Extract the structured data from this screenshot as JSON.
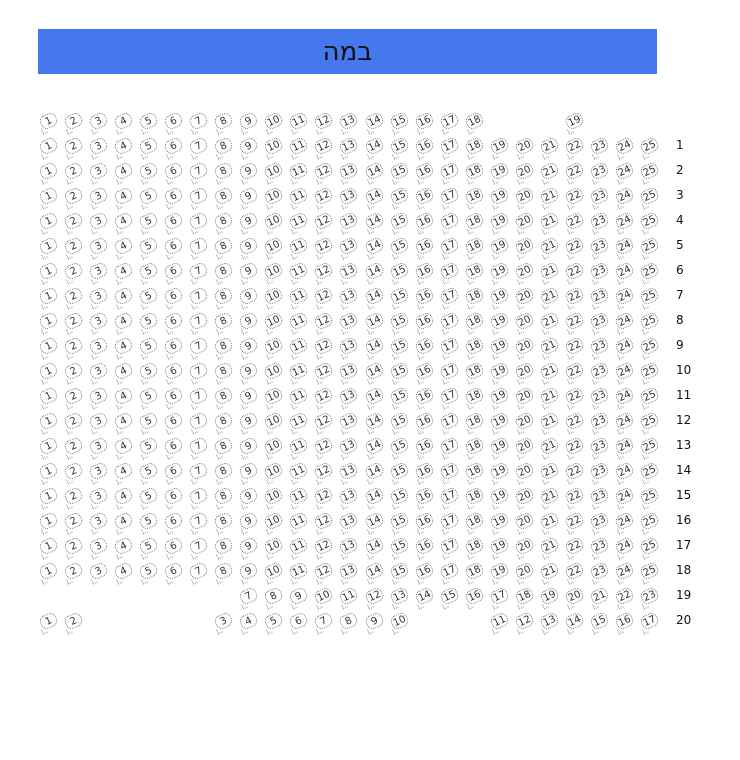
{
  "stage": {
    "label": "במה",
    "color": "#4577ee"
  },
  "rows": [
    {
      "label": "",
      "seats": [
        1,
        2,
        3,
        4,
        5,
        6,
        7,
        8,
        9,
        10,
        11,
        12,
        13,
        14,
        15,
        16,
        17,
        18,
        null,
        null,
        null,
        19
      ]
    },
    {
      "label": "1",
      "seats": [
        1,
        2,
        3,
        4,
        5,
        6,
        7,
        8,
        9,
        10,
        11,
        12,
        13,
        14,
        15,
        16,
        17,
        18,
        19,
        20,
        21,
        22,
        23,
        24,
        25
      ]
    },
    {
      "label": "2",
      "seats": [
        1,
        2,
        3,
        4,
        5,
        6,
        7,
        8,
        9,
        10,
        11,
        12,
        13,
        14,
        15,
        16,
        17,
        18,
        19,
        20,
        21,
        22,
        23,
        24,
        25
      ]
    },
    {
      "label": "3",
      "seats": [
        1,
        2,
        3,
        4,
        5,
        6,
        7,
        8,
        9,
        10,
        11,
        12,
        13,
        14,
        15,
        16,
        17,
        18,
        19,
        20,
        21,
        22,
        23,
        24,
        25
      ]
    },
    {
      "label": "4",
      "seats": [
        1,
        2,
        3,
        4,
        5,
        6,
        7,
        8,
        9,
        10,
        11,
        12,
        13,
        14,
        15,
        16,
        17,
        18,
        19,
        20,
        21,
        22,
        23,
        24,
        25
      ]
    },
    {
      "label": "5",
      "seats": [
        1,
        2,
        3,
        4,
        5,
        6,
        7,
        8,
        9,
        10,
        11,
        12,
        13,
        14,
        15,
        16,
        17,
        18,
        19,
        20,
        21,
        22,
        23,
        24,
        25
      ]
    },
    {
      "label": "6",
      "seats": [
        1,
        2,
        3,
        4,
        5,
        6,
        7,
        8,
        9,
        10,
        11,
        12,
        13,
        14,
        15,
        16,
        17,
        18,
        19,
        20,
        21,
        22,
        23,
        24,
        25
      ]
    },
    {
      "label": "7",
      "seats": [
        1,
        2,
        3,
        4,
        5,
        6,
        7,
        8,
        9,
        10,
        11,
        12,
        13,
        14,
        15,
        16,
        17,
        18,
        19,
        20,
        21,
        22,
        23,
        24,
        25
      ]
    },
    {
      "label": "8",
      "seats": [
        1,
        2,
        3,
        4,
        5,
        6,
        7,
        8,
        9,
        10,
        11,
        12,
        13,
        14,
        15,
        16,
        17,
        18,
        19,
        20,
        21,
        22,
        23,
        24,
        25
      ]
    },
    {
      "label": "9",
      "seats": [
        1,
        2,
        3,
        4,
        5,
        6,
        7,
        8,
        9,
        10,
        11,
        12,
        13,
        14,
        15,
        16,
        17,
        18,
        19,
        20,
        21,
        22,
        23,
        24,
        25
      ]
    },
    {
      "label": "10",
      "seats": [
        1,
        2,
        3,
        4,
        5,
        6,
        7,
        8,
        9,
        10,
        11,
        12,
        13,
        14,
        15,
        16,
        17,
        18,
        19,
        20,
        21,
        22,
        23,
        24,
        25
      ]
    },
    {
      "label": "11",
      "seats": [
        1,
        2,
        3,
        4,
        5,
        6,
        7,
        8,
        9,
        10,
        11,
        12,
        13,
        14,
        15,
        16,
        17,
        18,
        19,
        20,
        21,
        22,
        23,
        24,
        25
      ]
    },
    {
      "label": "12",
      "seats": [
        1,
        2,
        3,
        4,
        5,
        6,
        7,
        8,
        9,
        10,
        11,
        12,
        13,
        14,
        15,
        16,
        17,
        18,
        19,
        20,
        21,
        22,
        23,
        24,
        25
      ]
    },
    {
      "label": "13",
      "seats": [
        1,
        2,
        3,
        4,
        5,
        6,
        7,
        8,
        9,
        10,
        11,
        12,
        13,
        14,
        15,
        16,
        17,
        18,
        19,
        20,
        21,
        22,
        23,
        24,
        25
      ]
    },
    {
      "label": "14",
      "seats": [
        1,
        2,
        3,
        4,
        5,
        6,
        7,
        8,
        9,
        10,
        11,
        12,
        13,
        14,
        15,
        16,
        17,
        18,
        19,
        20,
        21,
        22,
        23,
        24,
        25
      ]
    },
    {
      "label": "15",
      "seats": [
        1,
        2,
        3,
        4,
        5,
        6,
        7,
        8,
        9,
        10,
        11,
        12,
        13,
        14,
        15,
        16,
        17,
        18,
        19,
        20,
        21,
        22,
        23,
        24,
        25
      ]
    },
    {
      "label": "16",
      "seats": [
        1,
        2,
        3,
        4,
        5,
        6,
        7,
        8,
        9,
        10,
        11,
        12,
        13,
        14,
        15,
        16,
        17,
        18,
        19,
        20,
        21,
        22,
        23,
        24,
        25
      ]
    },
    {
      "label": "17",
      "seats": [
        1,
        2,
        3,
        4,
        5,
        6,
        7,
        8,
        9,
        10,
        11,
        12,
        13,
        14,
        15,
        16,
        17,
        18,
        19,
        20,
        21,
        22,
        23,
        24,
        25
      ]
    },
    {
      "label": "18",
      "seats": [
        1,
        2,
        3,
        4,
        5,
        6,
        7,
        8,
        9,
        10,
        11,
        12,
        13,
        14,
        15,
        16,
        17,
        18,
        19,
        20,
        21,
        22,
        23,
        24,
        25
      ]
    },
    {
      "label": "19",
      "seats": [
        null,
        null,
        null,
        null,
        null,
        null,
        null,
        null,
        7,
        8,
        9,
        10,
        11,
        12,
        13,
        14,
        15,
        16,
        17,
        18,
        19,
        20,
        21,
        22,
        23
      ]
    },
    {
      "label": "20",
      "seats": [
        1,
        2,
        null,
        null,
        null,
        null,
        null,
        3,
        4,
        5,
        6,
        7,
        8,
        9,
        10,
        null,
        null,
        null,
        11,
        12,
        13,
        14,
        15,
        16,
        17
      ]
    }
  ]
}
